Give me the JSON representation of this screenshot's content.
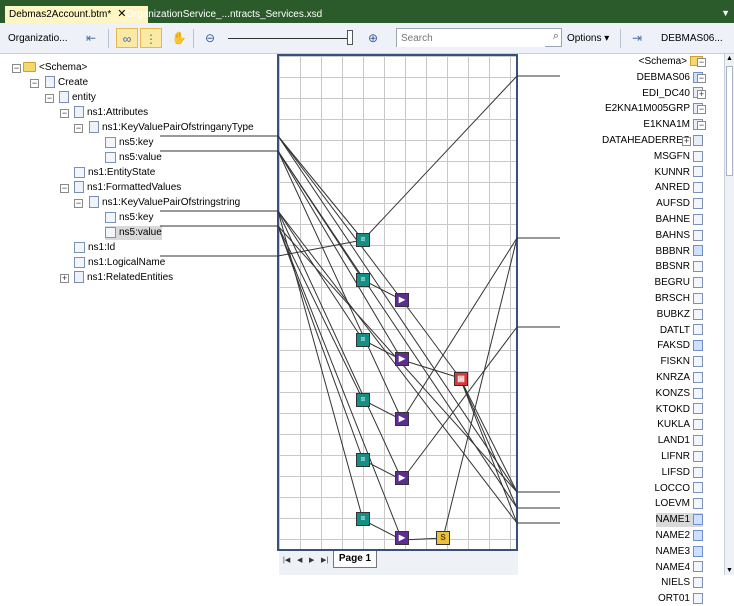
{
  "tabs": {
    "active": "Debmas2Account.btm*",
    "inactive": "OrganizationService_...ntracts_Services.xsd"
  },
  "toolbar": {
    "source_label": "Organizatio...",
    "search_placeholder": "Search",
    "options_label": "Options",
    "target_label": "DEBMAS06..."
  },
  "source_tree": [
    {
      "label": "<Schema>",
      "icon": "folder"
    },
    {
      "label": "Create",
      "icon": "record"
    },
    {
      "label": "entity",
      "icon": "record"
    },
    {
      "label": "ns1:Attributes",
      "icon": "record"
    },
    {
      "label": "ns1:KeyValuePairOfstringanyType",
      "icon": "record"
    },
    {
      "label": "ns5:key",
      "icon": "field"
    },
    {
      "label": "ns5:value",
      "icon": "field"
    },
    {
      "label": "ns1:EntityState",
      "icon": "field"
    },
    {
      "label": "ns1:FormattedValues",
      "icon": "record"
    },
    {
      "label": "ns1:KeyValuePairOfstringstring",
      "icon": "record"
    },
    {
      "label": "ns5:key",
      "icon": "field"
    },
    {
      "label": "ns5:value",
      "icon": "field"
    },
    {
      "label": "ns1:Id",
      "icon": "field"
    },
    {
      "label": "ns1:LogicalName",
      "icon": "field"
    },
    {
      "label": "ns1:RelatedEntities",
      "icon": "record"
    }
  ],
  "target_tree": [
    "<Schema>",
    "DEBMAS06",
    "EDI_DC40",
    "E2KNA1M005GRP",
    "E1KNA1M",
    "DATAHEADERREC",
    "MSGFN",
    "KUNNR",
    "ANRED",
    "AUFSD",
    "BAHNE",
    "BAHNS",
    "BBBNR",
    "BBSNR",
    "BEGRU",
    "BRSCH",
    "BUBKZ",
    "DATLT",
    "FAKSD",
    "FISKN",
    "KNRZA",
    "KONZS",
    "KTOKD",
    "KUKLA",
    "LAND1",
    "LIFNR",
    "LIFSD",
    "LOCCO",
    "LOEVM",
    "NAME1",
    "NAME2",
    "NAME3",
    "NAME4",
    "NIELS",
    "ORT01"
  ],
  "page_tab": "Page 1"
}
